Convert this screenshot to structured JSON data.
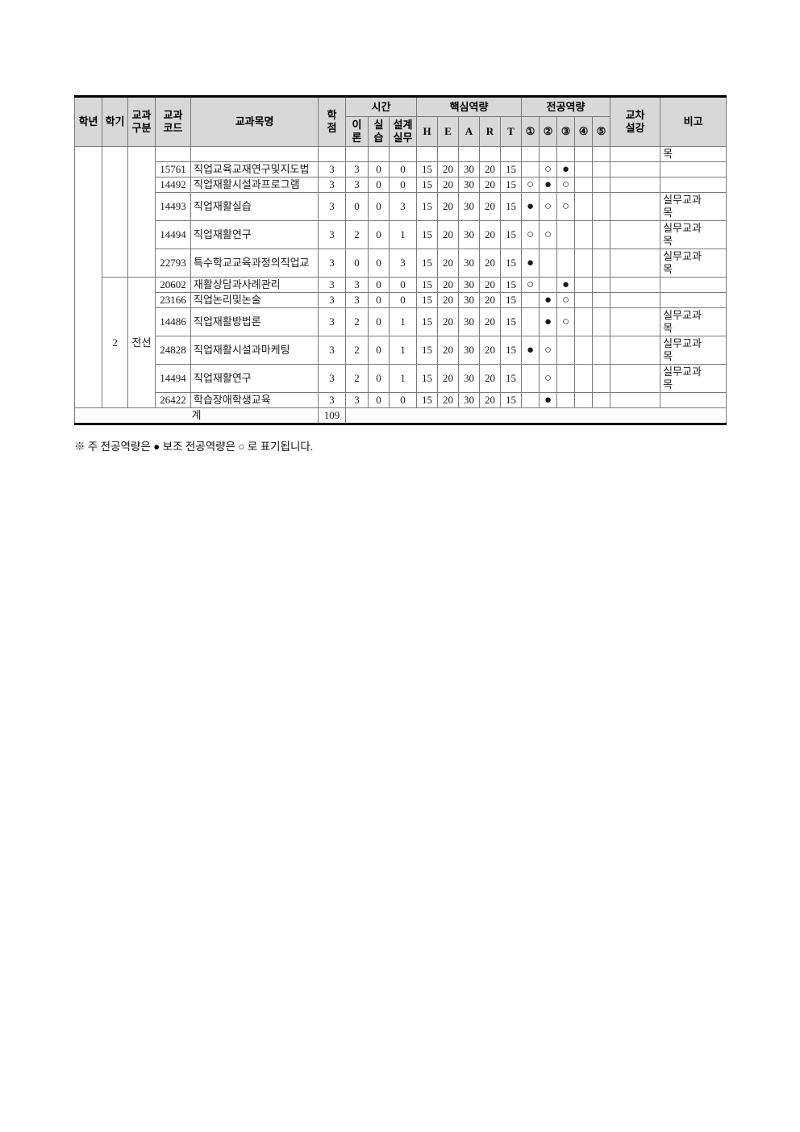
{
  "page": {
    "background": "#ffffff"
  },
  "legend_note": "※ 주 전공역량은 ● 보조 전공역량은 ○ 로 표기됩니다.",
  "table": {
    "colors": {
      "header_bg": "#d8d8d8",
      "grid_line": "#7a7a7a",
      "outer_border": "#000000"
    },
    "header": {
      "grade": "학년",
      "semester": "학기",
      "division": "교과\n구분",
      "code": "교과\n코드",
      "course_name": "교과목명",
      "credit": "학\n점",
      "hours_label": "시간",
      "hours_cols": [
        "이\n론",
        "실\n습",
        "설계\n실무"
      ],
      "core_label": "핵심역량",
      "core_cols": [
        "H",
        "E",
        "A",
        "R",
        "T"
      ],
      "major_label": "전공역량",
      "major_cols": [
        "①",
        "②",
        "③",
        "④",
        "⑤"
      ],
      "cross": "교차\n설강",
      "note": "비고"
    },
    "grade_value": "",
    "row_groups": [
      {
        "semester": "",
        "division": "",
        "rows": [
          {
            "code": "",
            "name": "",
            "credit": "",
            "theory": "",
            "practice": "",
            "design": "",
            "core": [
              "",
              "",
              "",
              "",
              ""
            ],
            "major": [
              "",
              "",
              "",
              "",
              ""
            ],
            "cross": "",
            "note": "목"
          },
          {
            "code": "15761",
            "name": "직업교육교재연구및지도법",
            "credit": "3",
            "theory": "3",
            "practice": "0",
            "design": "0",
            "core": [
              "15",
              "20",
              "30",
              "20",
              "15"
            ],
            "major": [
              "",
              "○",
              "●",
              "",
              ""
            ],
            "cross": "",
            "note": ""
          },
          {
            "code": "14492",
            "name": "직업재활시설과프로그램",
            "credit": "3",
            "theory": "3",
            "practice": "0",
            "design": "0",
            "core": [
              "15",
              "20",
              "30",
              "20",
              "15"
            ],
            "major": [
              "○",
              "●",
              "○",
              "",
              ""
            ],
            "cross": "",
            "note": ""
          },
          {
            "code": "14493",
            "name": "직업재활실습",
            "credit": "3",
            "theory": "0",
            "practice": "0",
            "design": "3",
            "core": [
              "15",
              "20",
              "30",
              "20",
              "15"
            ],
            "major": [
              "●",
              "○",
              "○",
              "",
              ""
            ],
            "cross": "",
            "note": "실무교과목"
          },
          {
            "code": "14494",
            "name": "직업재활연구",
            "credit": "3",
            "theory": "2",
            "practice": "0",
            "design": "1",
            "core": [
              "15",
              "20",
              "30",
              "20",
              "15"
            ],
            "major": [
              "○",
              "○",
              "",
              "",
              ""
            ],
            "cross": "",
            "note": "실무교과목"
          },
          {
            "code": "22793",
            "name": "특수학교교육과정의직업교",
            "credit": "3",
            "theory": "0",
            "practice": "0",
            "design": "3",
            "core": [
              "15",
              "20",
              "30",
              "20",
              "15"
            ],
            "major": [
              "●",
              "",
              "",
              "",
              ""
            ],
            "cross": "",
            "note": "실무교과목"
          }
        ]
      },
      {
        "semester": "2",
        "division": "전선",
        "rows": [
          {
            "code": "20602",
            "name": "재활상담과사례관리",
            "credit": "3",
            "theory": "3",
            "practice": "0",
            "design": "0",
            "core": [
              "15",
              "20",
              "30",
              "20",
              "15"
            ],
            "major": [
              "○",
              "",
              "●",
              "",
              ""
            ],
            "cross": "",
            "note": ""
          },
          {
            "code": "23166",
            "name": "직업논리및논술",
            "credit": "3",
            "theory": "3",
            "practice": "0",
            "design": "0",
            "core": [
              "15",
              "20",
              "30",
              "20",
              "15"
            ],
            "major": [
              "",
              "●",
              "○",
              "",
              ""
            ],
            "cross": "",
            "note": ""
          },
          {
            "code": "14486",
            "name": "직업재활방법론",
            "credit": "3",
            "theory": "2",
            "practice": "0",
            "design": "1",
            "core": [
              "15",
              "20",
              "30",
              "20",
              "15"
            ],
            "major": [
              "",
              "●",
              "○",
              "",
              ""
            ],
            "cross": "",
            "note": "실무교과목"
          },
          {
            "code": "24828",
            "name": "직업재활시설과마케팅",
            "credit": "3",
            "theory": "2",
            "practice": "0",
            "design": "1",
            "core": [
              "15",
              "20",
              "30",
              "20",
              "15"
            ],
            "major": [
              "●",
              "○",
              "",
              "",
              ""
            ],
            "cross": "",
            "note": "실무교과목"
          },
          {
            "code": "14494",
            "name": "직업재활연구",
            "credit": "3",
            "theory": "2",
            "practice": "0",
            "design": "1",
            "core": [
              "15",
              "20",
              "30",
              "20",
              "15"
            ],
            "major": [
              "",
              "○",
              "",
              "",
              ""
            ],
            "cross": "",
            "note": "실무교과목"
          },
          {
            "code": "26422",
            "name": "학습장애학생교육",
            "credit": "3",
            "theory": "3",
            "practice": "0",
            "design": "0",
            "core": [
              "15",
              "20",
              "30",
              "20",
              "15"
            ],
            "major": [
              "",
              "●",
              "",
              "",
              ""
            ],
            "cross": "",
            "note": ""
          }
        ]
      }
    ],
    "total": {
      "label": "계",
      "credit": "109"
    }
  }
}
